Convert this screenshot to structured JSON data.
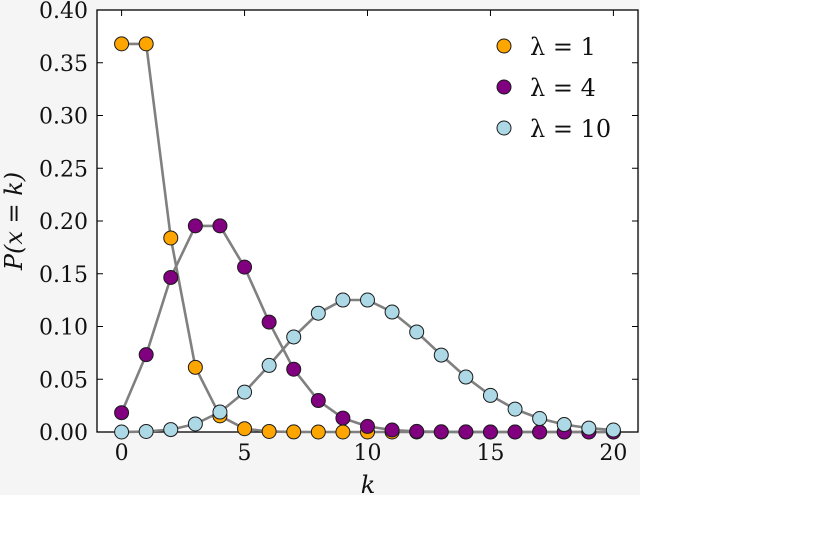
{
  "chart_data": {
    "type": "line",
    "xlabel": "k",
    "ylabel": "P(x = k)",
    "xlim": [
      -1,
      21
    ],
    "ylim": [
      0,
      0.4
    ],
    "xticks": [
      0,
      5,
      10,
      15,
      20
    ],
    "yticks": [
      "0.00",
      "0.05",
      "0.10",
      "0.15",
      "0.20",
      "0.25",
      "0.30",
      "0.35",
      "0.40"
    ],
    "legend_position": "top-right",
    "grid": false,
    "series": [
      {
        "name": "λ = 1",
        "color": "#ffa500",
        "x": [
          0,
          1,
          2,
          3,
          4,
          5,
          6,
          7,
          8,
          9,
          10,
          11,
          12,
          13,
          14,
          15,
          16,
          17,
          18,
          19,
          20
        ],
        "values": [
          0.3679,
          0.3679,
          0.1839,
          0.0613,
          0.0153,
          0.0031,
          0.0005,
          0.0001,
          0,
          0,
          0,
          0,
          0,
          0,
          0,
          0,
          0,
          0,
          0,
          0,
          0
        ]
      },
      {
        "name": "λ = 4",
        "color": "#800080",
        "x": [
          0,
          1,
          2,
          3,
          4,
          5,
          6,
          7,
          8,
          9,
          10,
          11,
          12,
          13,
          14,
          15,
          16,
          17,
          18,
          19,
          20
        ],
        "values": [
          0.0183,
          0.0733,
          0.1465,
          0.1954,
          0.1954,
          0.1563,
          0.1042,
          0.0595,
          0.0298,
          0.0132,
          0.0053,
          0.0019,
          0.0006,
          0.0002,
          0.0001,
          0,
          0,
          0,
          0,
          0,
          0
        ]
      },
      {
        "name": "λ = 10",
        "color": "#add8e6",
        "x": [
          0,
          1,
          2,
          3,
          4,
          5,
          6,
          7,
          8,
          9,
          10,
          11,
          12,
          13,
          14,
          15,
          16,
          17,
          18,
          19,
          20
        ],
        "values": [
          0,
          0.0005,
          0.0023,
          0.0076,
          0.0189,
          0.0378,
          0.0631,
          0.0901,
          0.1126,
          0.1251,
          0.1251,
          0.1137,
          0.0948,
          0.0729,
          0.0521,
          0.0347,
          0.0217,
          0.0128,
          0.0071,
          0.0037,
          0.0019
        ]
      }
    ]
  }
}
